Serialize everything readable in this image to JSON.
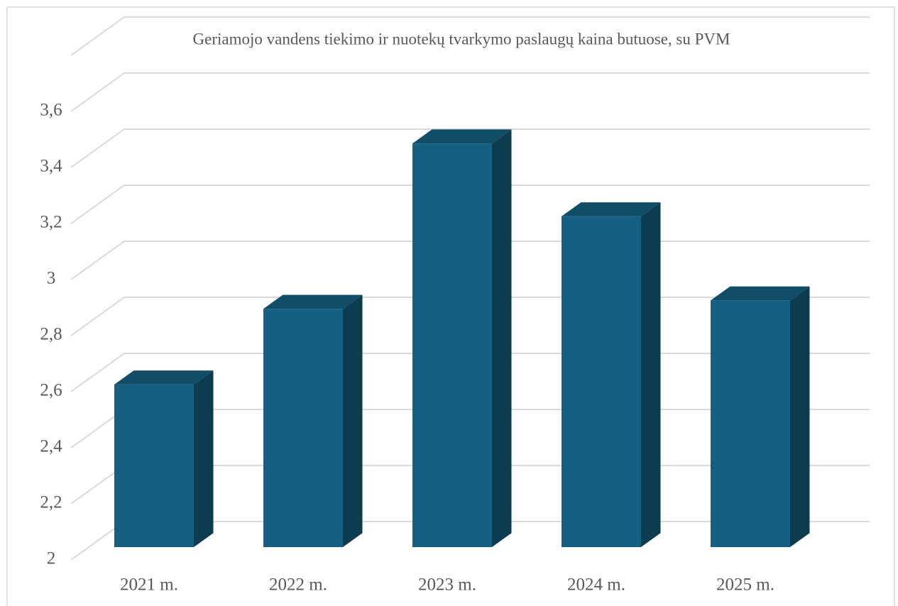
{
  "chart_data": {
    "type": "bar3d",
    "title": "Geriamojo vandens tiekimo ir nuotekų tvarkymo paslaugų kaina butuose, su PVM",
    "categories": [
      "2021 m.",
      "2022 m.",
      "2023 m.",
      "2024 m.",
      "2025 m."
    ],
    "values": [
      2.58,
      2.85,
      3.44,
      3.18,
      2.88
    ],
    "colors": {
      "front": "#156082",
      "side": "#0c3c50",
      "top": "#124d68"
    },
    "ylim": [
      2,
      3.8
    ],
    "yticks": [
      2,
      {
        "value": 2.2,
        "label": "2,2"
      },
      {
        "value": 2.4,
        "label": "2,4"
      },
      {
        "value": 2.6,
        "label": "2,6"
      },
      {
        "value": 2.8,
        "label": "2,8"
      },
      3,
      {
        "value": 3.2,
        "label": "3,2"
      },
      {
        "value": 3.4,
        "label": "3,4"
      },
      {
        "value": 3.6,
        "label": "3,6"
      }
    ],
    "grid": true
  }
}
